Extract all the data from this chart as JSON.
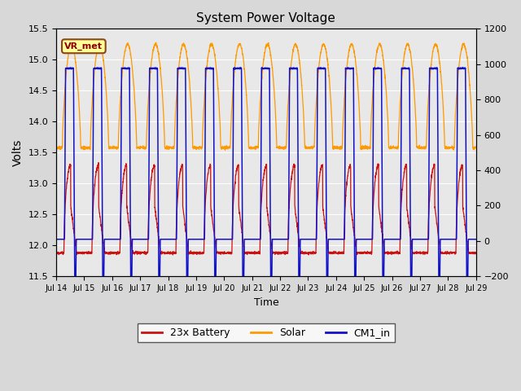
{
  "title": "System Power Voltage",
  "xlabel": "Time",
  "ylabel": "Volts",
  "ylim_left": [
    11.5,
    15.5
  ],
  "ylim_right": [
    -200,
    1200
  ],
  "yticks_left": [
    11.5,
    12.0,
    12.5,
    13.0,
    13.5,
    14.0,
    14.5,
    15.0,
    15.5
  ],
  "yticks_right": [
    -200,
    0,
    200,
    400,
    600,
    800,
    1000,
    1200
  ],
  "n_days": 15,
  "xtick_labels": [
    "Jul 14",
    "Jul 15",
    "Jul 16",
    "Jul 17",
    "Jul 18",
    "Jul 19",
    "Jul 20",
    "Jul 21",
    "Jul 22",
    "Jul 23",
    "Jul 24",
    "Jul 25",
    "Jul 26",
    "Jul 27",
    "Jul 28",
    "Jul 29"
  ],
  "fig_bg_color": "#d8d8d8",
  "plot_bg_color": "#e8e8e8",
  "grid_color": "#ffffff",
  "legend_labels": [
    "23x Battery",
    "Solar",
    "CM1_in"
  ],
  "legend_colors": [
    "#cc1111",
    "#ff9900",
    "#1111cc"
  ],
  "annotation_text": "VR_met",
  "solar_night": 13.58,
  "solar_peak": 15.25,
  "battery_night": 11.92,
  "battery_peak": 13.3,
  "cm1_night": 12.1,
  "cm1_peak": 14.87
}
